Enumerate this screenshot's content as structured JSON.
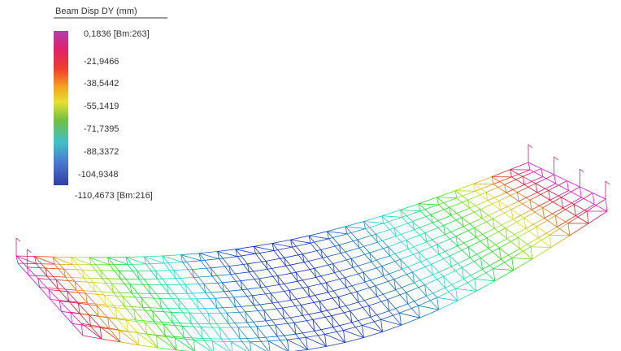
{
  "legend": {
    "title": "Beam Disp DY (mm)",
    "labels": [
      "0,1836 [Bm:263]",
      "-21,9466",
      "-38,5442",
      "-55,1419",
      "-71,7395",
      "-88,3372",
      "-104,9348",
      "-110,4673 [Bm:216]"
    ]
  }
}
